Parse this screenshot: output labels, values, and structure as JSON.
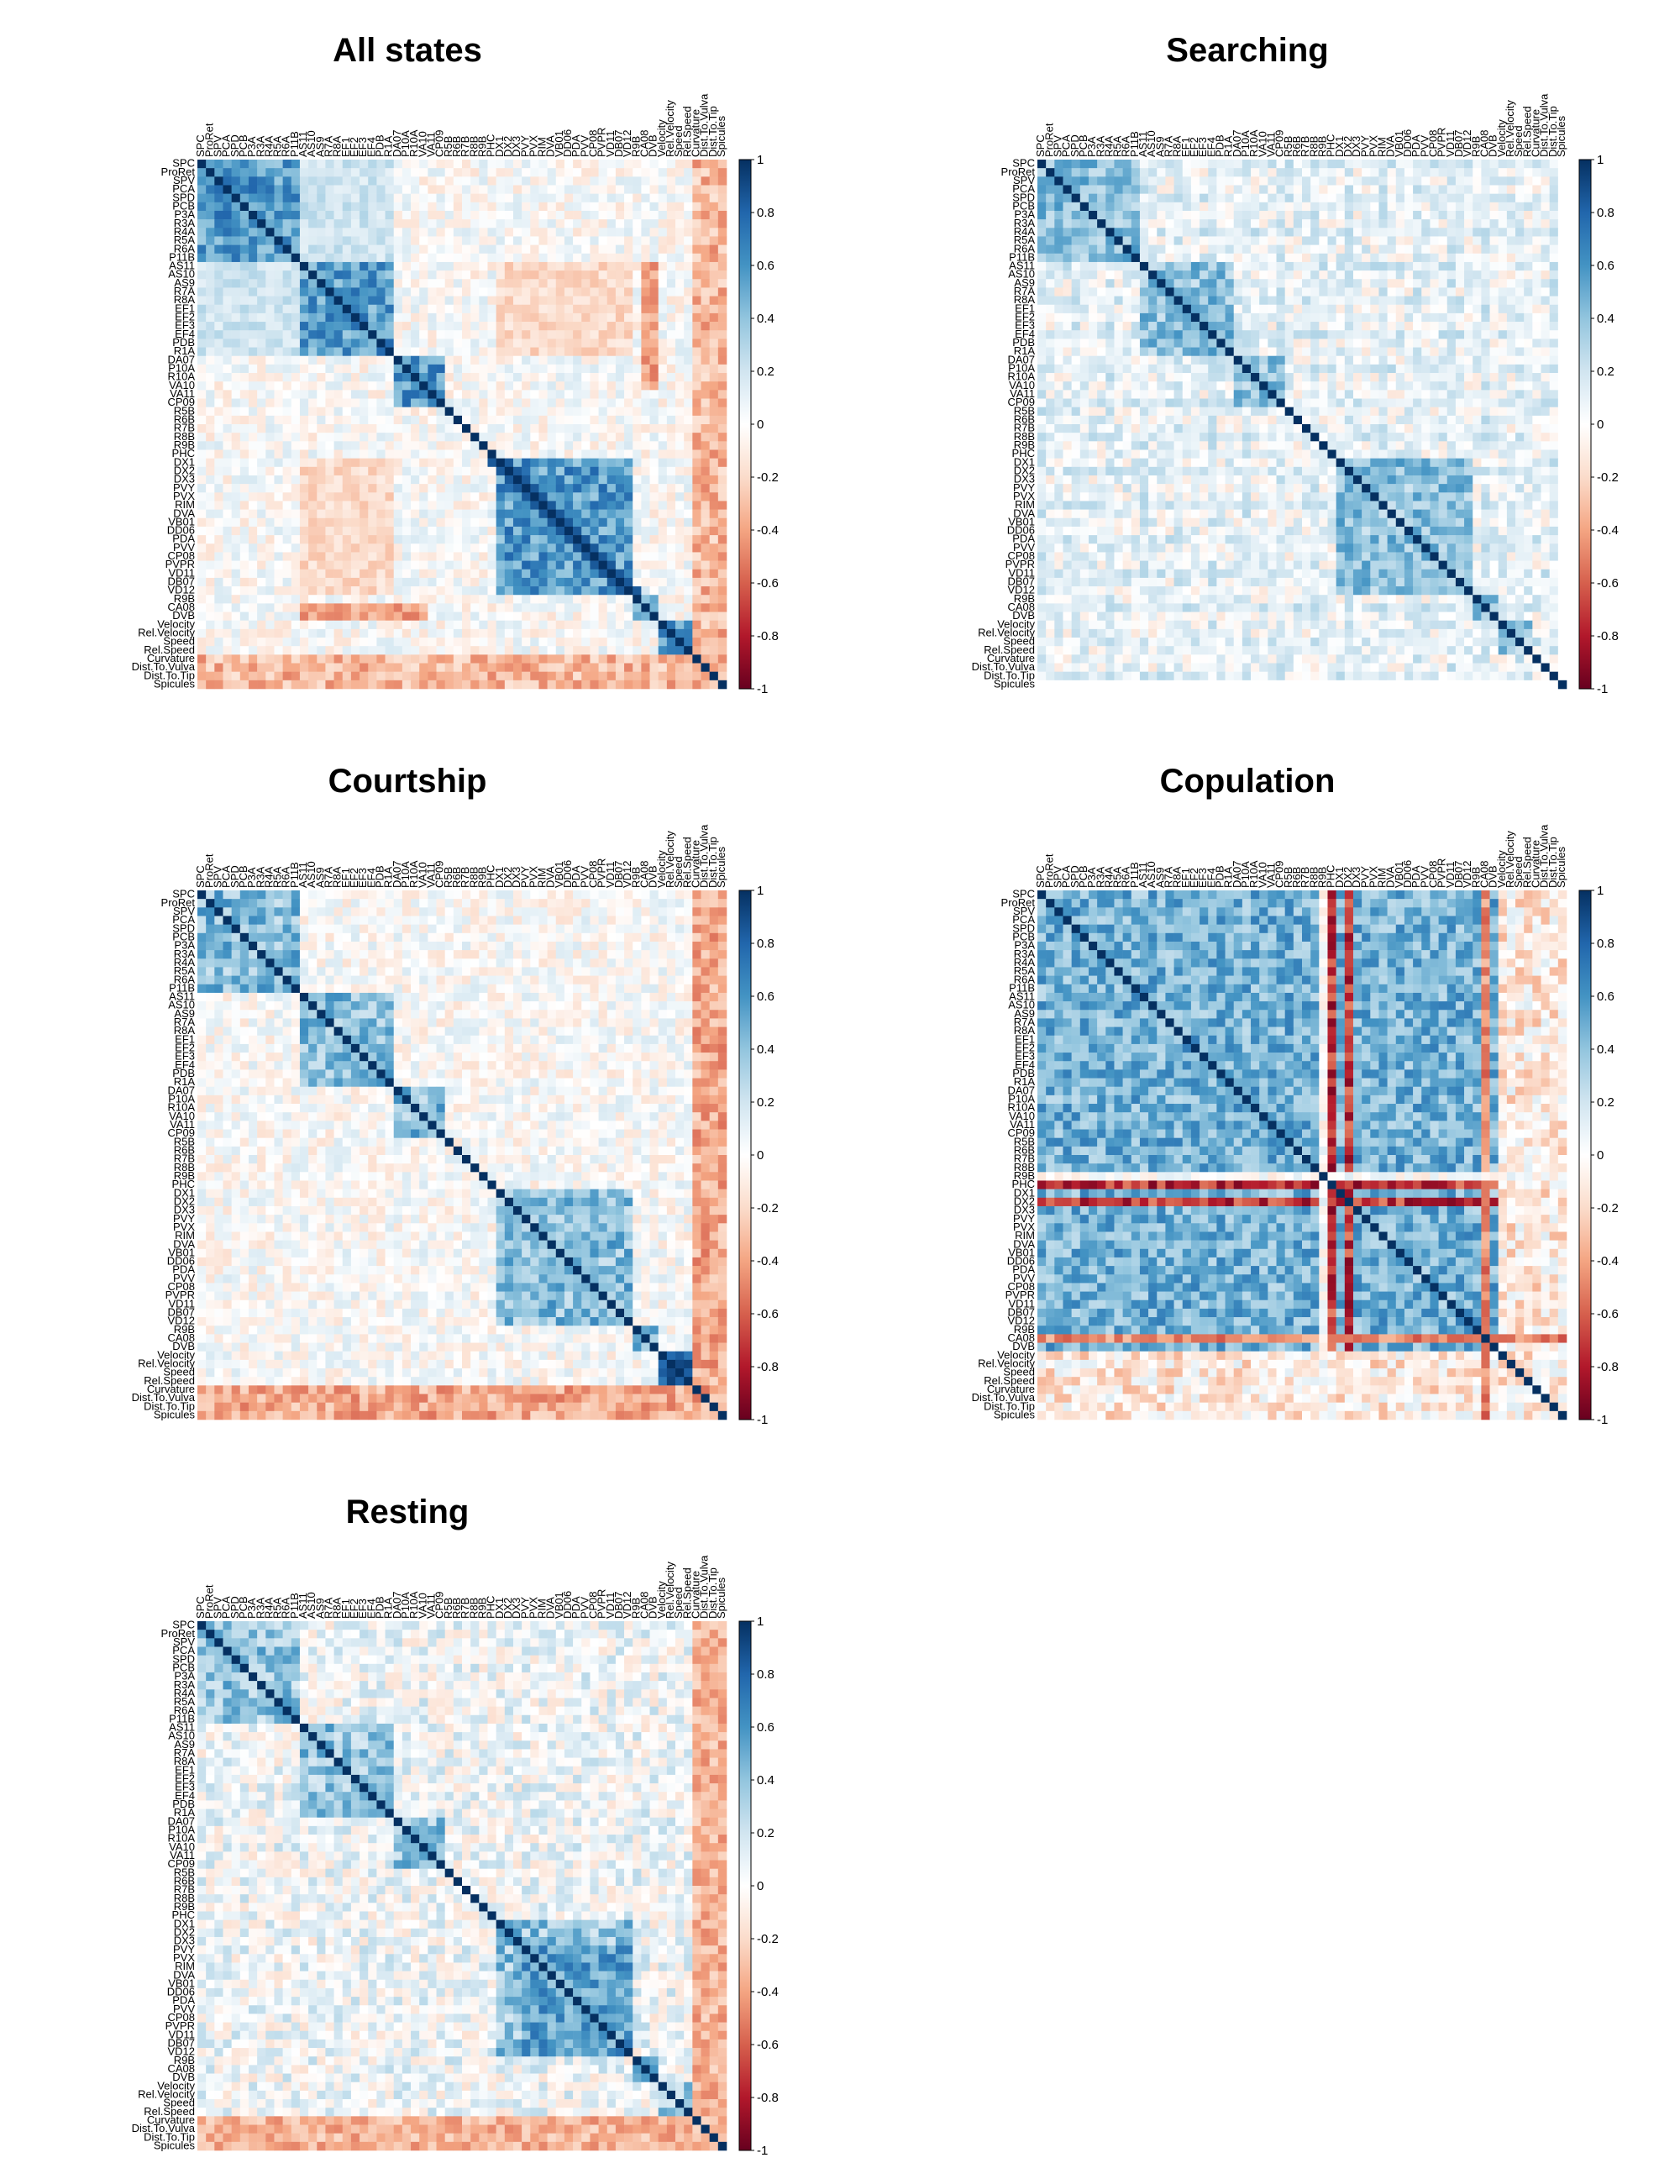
{
  "labels": [
    "SPC",
    "ProRet",
    "SPV",
    "PCA",
    "SPD",
    "PCB",
    "P3A",
    "R3A",
    "R4A",
    "R5A",
    "R6A",
    "P11B",
    "AS11",
    "AS10",
    "AS9",
    "R7A",
    "R8A",
    "EF1",
    "EF2",
    "EF3",
    "EF4",
    "PDB",
    "R1A",
    "DA07",
    "P10A",
    "R10A",
    "VA10",
    "VA11",
    "CP09",
    "R5B",
    "R6B",
    "R7B",
    "R8B",
    "R9B",
    "PHC",
    "DX1",
    "DX2",
    "DX3",
    "PVY",
    "PVX",
    "RIM",
    "DVA",
    "VB01",
    "DD06",
    "PDA",
    "PVV",
    "CP08",
    "PVPR",
    "VD11",
    "DB07",
    "VD12",
    "R9B",
    "CA08",
    "DVB",
    "Velocity",
    "Rel.Velocity",
    "Speed",
    "Rel.Speed",
    "Curvature",
    "Dist.To.Vulva",
    "Dist.To.Tip",
    "Spicules"
  ],
  "colorbar_ticks": [
    "1",
    "0.8",
    "0.6",
    "0.4",
    "0.2",
    "0",
    "-0.2",
    "-0.4",
    "-0.6",
    "-0.8",
    "-1"
  ],
  "colors": {
    "negative": "#67001f",
    "neutral": "#ffffff",
    "positive": "#053061"
  },
  "panels": [
    {
      "title": "All states",
      "pattern": "all"
    },
    {
      "title": "Searching",
      "pattern": "searching"
    },
    {
      "title": "Courtship",
      "pattern": "courtship"
    },
    {
      "title": "Copulation",
      "pattern": "copulation"
    },
    {
      "title": "Resting",
      "pattern": "resting"
    }
  ],
  "chart_data": [
    {
      "type": "heatmap",
      "title": "All states",
      "vmin": -1,
      "vmax": 1,
      "n_variables": 62
    },
    {
      "type": "heatmap",
      "title": "Searching",
      "vmin": -1,
      "vmax": 1,
      "n_variables": 62
    },
    {
      "type": "heatmap",
      "title": "Courtship",
      "vmin": -1,
      "vmax": 1,
      "n_variables": 62
    },
    {
      "type": "heatmap",
      "title": "Copulation",
      "vmin": -1,
      "vmax": 1,
      "n_variables": 62
    },
    {
      "type": "heatmap",
      "title": "Resting",
      "vmin": -1,
      "vmax": 1,
      "n_variables": 62
    }
  ]
}
